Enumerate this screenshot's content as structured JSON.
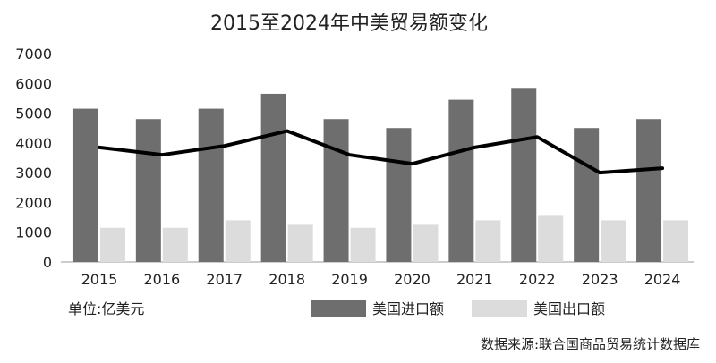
{
  "chart_data": {
    "type": "bar",
    "title": "2015至2024年中美贸易额变化",
    "unit_label": "单位:亿美元",
    "source": "数据来源:联合国商品贸易统计数据库",
    "categories": [
      "2015",
      "2016",
      "2017",
      "2018",
      "2019",
      "2020",
      "2021",
      "2022",
      "2023",
      "2024"
    ],
    "series": [
      {
        "name": "美国进口额",
        "kind": "bar",
        "color": "#6e6e6e",
        "values": [
          5150,
          4800,
          5150,
          5650,
          4800,
          4500,
          5450,
          5850,
          4500,
          4800
        ]
      },
      {
        "name": "美国出口额",
        "kind": "bar",
        "color": "#dcdcdc",
        "values": [
          1150,
          1150,
          1400,
          1250,
          1150,
          1250,
          1400,
          1550,
          1400,
          1400
        ]
      },
      {
        "kind": "line",
        "color": "#000000",
        "values": [
          3850,
          3600,
          3900,
          4400,
          3600,
          3300,
          3850,
          4200,
          3000,
          3150
        ]
      }
    ],
    "y_ticks": [
      "0",
      "1000",
      "2000",
      "3000",
      "4000",
      "5000",
      "6000",
      "7000"
    ],
    "ylim": [
      0,
      7000
    ],
    "grid": false,
    "legend_position": "bottom"
  }
}
